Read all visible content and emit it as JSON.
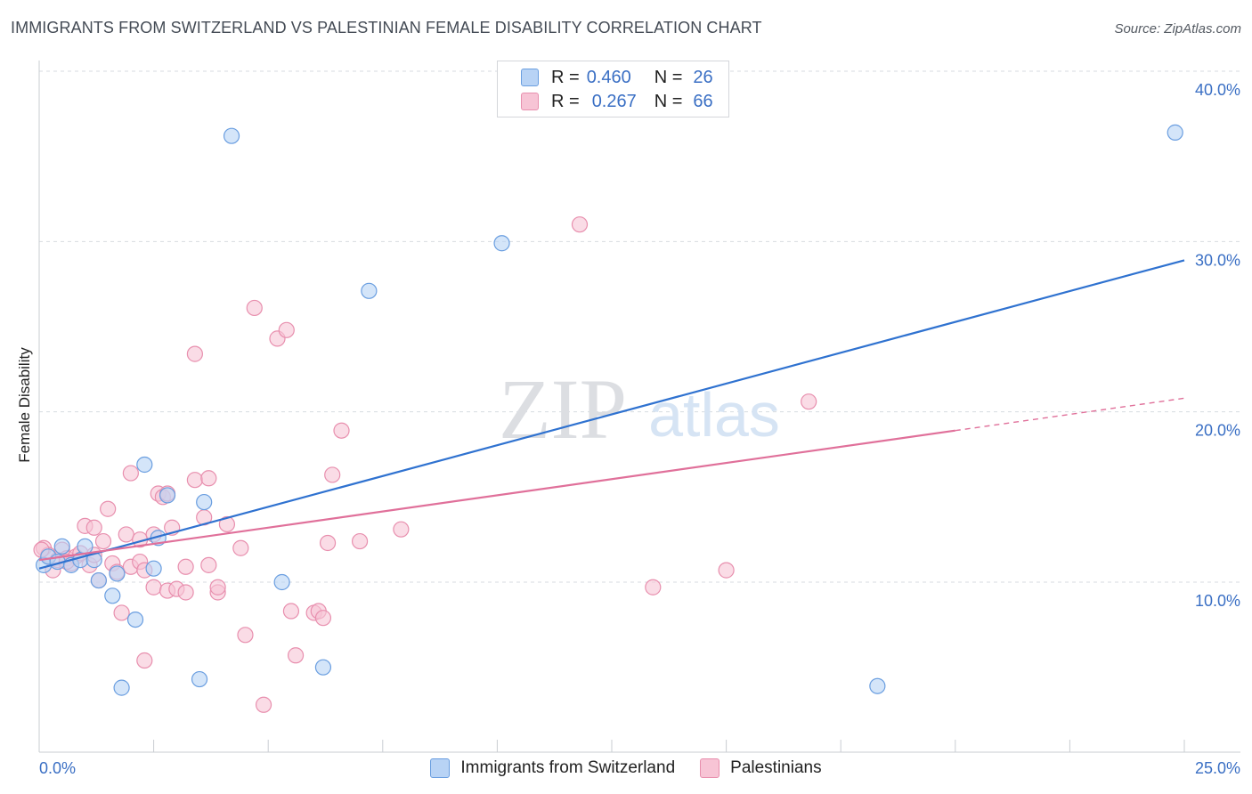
{
  "title": "IMMIGRANTS FROM SWITZERLAND VS PALESTINIAN FEMALE DISABILITY CORRELATION CHART",
  "source": "Source: ZipAtlas.com",
  "watermark": {
    "zip": "ZIP",
    "atlas": "atlas"
  },
  "colors": {
    "blue_fill": "#b8d3f5",
    "blue_stroke": "#6a9ee0",
    "blue_line": "#2f72d0",
    "pink_fill": "#f7c4d5",
    "pink_stroke": "#e88fae",
    "pink_line": "#e0709a",
    "tick_label": "#3a6fc4",
    "grid": "#d7dbe0"
  },
  "legend_top": [
    {
      "r_label": "R =",
      "r_value": "0.460",
      "n_label": "N =",
      "n_value": "26"
    },
    {
      "r_label": "R =",
      "r_value": "0.267",
      "n_label": "N =",
      "n_value": "66"
    }
  ],
  "legend_bottom": [
    "Immigrants from Switzerland",
    "Palestinians"
  ],
  "chart_data": {
    "type": "scatter",
    "title": "IMMIGRANTS FROM SWITZERLAND VS PALESTINIAN FEMALE DISABILITY CORRELATION CHART",
    "xlabel": "",
    "ylabel": "Female Disability",
    "xlim": [
      0,
      25
    ],
    "ylim": [
      0,
      40
    ],
    "x_tick_labels": [
      "0.0%",
      "25.0%"
    ],
    "y_ticks": [
      10,
      20,
      30,
      40
    ],
    "y_tick_labels": [
      "10.0%",
      "20.0%",
      "30.0%",
      "40.0%"
    ],
    "grid": true,
    "series": [
      {
        "name": "Immigrants from Switzerland",
        "r": 0.46,
        "n": 26,
        "trend": {
          "x0": 0.0,
          "y0": 10.8,
          "x1": 25.0,
          "y1": 28.9,
          "dashed_from": null
        },
        "points": [
          [
            0.1,
            11.0
          ],
          [
            0.2,
            11.5
          ],
          [
            0.4,
            11.2
          ],
          [
            0.5,
            12.1
          ],
          [
            0.7,
            11.0
          ],
          [
            0.9,
            11.3
          ],
          [
            1.0,
            12.1
          ],
          [
            1.2,
            11.3
          ],
          [
            1.3,
            10.1
          ],
          [
            1.6,
            9.2
          ],
          [
            1.7,
            10.5
          ],
          [
            1.8,
            3.8
          ],
          [
            2.1,
            7.8
          ],
          [
            2.3,
            16.9
          ],
          [
            2.5,
            10.8
          ],
          [
            2.6,
            12.6
          ],
          [
            2.8,
            15.1
          ],
          [
            3.5,
            4.3
          ],
          [
            3.6,
            14.7
          ],
          [
            4.2,
            36.2
          ],
          [
            5.3,
            10.0
          ],
          [
            6.2,
            5.0
          ],
          [
            7.2,
            27.1
          ],
          [
            10.1,
            29.9
          ],
          [
            18.3,
            3.9
          ],
          [
            24.8,
            36.4
          ]
        ]
      },
      {
        "name": "Palestinians",
        "r": 0.267,
        "n": 66,
        "trend": {
          "x0": 0.0,
          "y0": 11.3,
          "x1": 25.0,
          "y1": 20.8,
          "dashed_from": 20.0
        },
        "points": [
          [
            0.1,
            12.0
          ],
          [
            0.2,
            11.6
          ],
          [
            0.3,
            10.7
          ],
          [
            0.4,
            11.3
          ],
          [
            0.5,
            11.9
          ],
          [
            0.6,
            11.4
          ],
          [
            0.7,
            11.1
          ],
          [
            0.8,
            11.5
          ],
          [
            0.9,
            11.7
          ],
          [
            1.0,
            13.3
          ],
          [
            1.1,
            11.0
          ],
          [
            1.2,
            13.2
          ],
          [
            1.3,
            10.1
          ],
          [
            1.4,
            12.4
          ],
          [
            1.5,
            14.3
          ],
          [
            1.6,
            11.1
          ],
          [
            1.7,
            10.6
          ],
          [
            1.8,
            8.2
          ],
          [
            1.9,
            12.8
          ],
          [
            2.0,
            10.9
          ],
          [
            2.0,
            16.4
          ],
          [
            2.2,
            12.5
          ],
          [
            2.2,
            11.2
          ],
          [
            2.3,
            5.4
          ],
          [
            2.3,
            10.7
          ],
          [
            2.5,
            12.8
          ],
          [
            2.5,
            9.7
          ],
          [
            2.6,
            15.2
          ],
          [
            2.7,
            15.0
          ],
          [
            2.8,
            9.5
          ],
          [
            2.8,
            15.2
          ],
          [
            2.9,
            13.2
          ],
          [
            3.0,
            9.6
          ],
          [
            3.2,
            9.4
          ],
          [
            3.2,
            10.9
          ],
          [
            3.4,
            23.4
          ],
          [
            3.4,
            16.0
          ],
          [
            3.6,
            13.8
          ],
          [
            3.7,
            11.0
          ],
          [
            3.7,
            16.1
          ],
          [
            3.9,
            9.4
          ],
          [
            3.9,
            9.7
          ],
          [
            4.1,
            13.4
          ],
          [
            4.4,
            12.0
          ],
          [
            4.5,
            6.9
          ],
          [
            4.7,
            26.1
          ],
          [
            4.9,
            2.8
          ],
          [
            5.2,
            24.3
          ],
          [
            5.4,
            24.8
          ],
          [
            5.5,
            8.3
          ],
          [
            5.6,
            5.7
          ],
          [
            6.0,
            8.2
          ],
          [
            6.1,
            8.3
          ],
          [
            6.2,
            7.9
          ],
          [
            6.3,
            12.3
          ],
          [
            6.4,
            16.3
          ],
          [
            6.6,
            18.9
          ],
          [
            7.0,
            12.4
          ],
          [
            7.9,
            13.1
          ],
          [
            11.8,
            31.0
          ],
          [
            13.4,
            9.7
          ],
          [
            15.0,
            10.7
          ],
          [
            16.8,
            20.6
          ],
          [
            0.05,
            11.9
          ],
          [
            1.2,
            11.6
          ],
          [
            0.6,
            11.2
          ]
        ]
      }
    ]
  }
}
